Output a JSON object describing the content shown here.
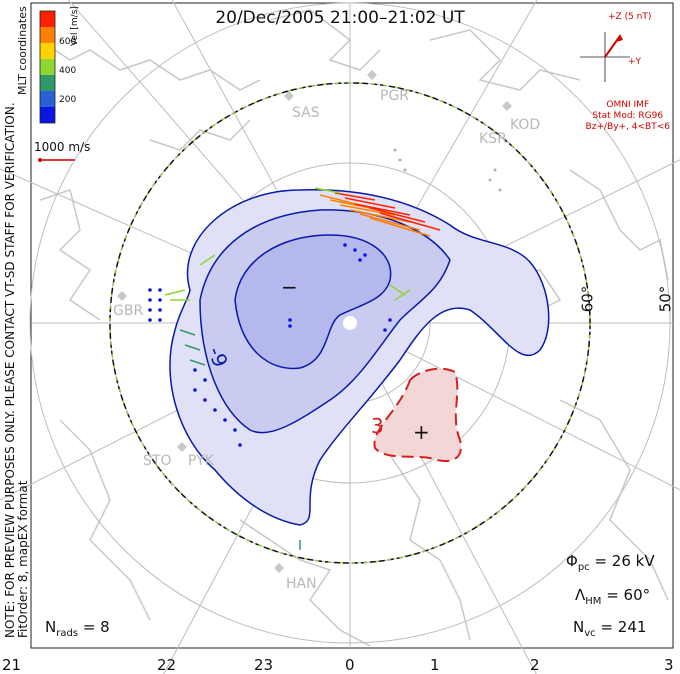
{
  "title": "20/Dec/2005 21:00–21:02 UT",
  "side_note": {
    "line1": "NOTE: FOR PREVIEW PURPOSES ONLY. PLEASE CONTACT VT-SD STAFF FOR VERIFICATION.",
    "line2": "FitOrder: 8, mapEX format",
    "coords": "MLT coordinates"
  },
  "colorbar": {
    "label": "Vel [m/s]",
    "ticks": [
      "600",
      "400",
      "200"
    ],
    "colors": [
      "#ff2000",
      "#ff8000",
      "#ffd200",
      "#8ed630",
      "#2e9a6a",
      "#2a5fd6",
      "#0b16e0"
    ]
  },
  "reference_vector": {
    "label": "1000 m/s",
    "color": "#d40000"
  },
  "imf": {
    "z_label": "+Z (5 nT)",
    "y_label": "+Y",
    "title": "OMNI IMF",
    "stat_mod": "Stat Mod: RG96",
    "condition": "Bz+/By+, 4<BT<6",
    "color": "#d40000"
  },
  "stats": {
    "phi_pc_symbol": "Φ",
    "phi_pc_sub": "pc",
    "phi_pc_value": "= 26 kV",
    "lambda_symbol": "Λ",
    "lambda_sub": "HM",
    "lambda_value": "= 60°",
    "nvc_symbol": "N",
    "nvc_sub": "vc",
    "nvc_value": "= 241",
    "nrads_symbol": "N",
    "nrads_sub": "rads",
    "nrads_value": "= 8"
  },
  "mlt_ticks": [
    "21",
    "22",
    "23",
    "0",
    "1",
    "2",
    "3"
  ],
  "latitude_labels": {
    "lat60": "60°",
    "lat50": "50°"
  },
  "stations": [
    "PGR",
    "SAS",
    "KSR",
    "KOD",
    "STO",
    "PYK",
    "HAN",
    "GBR"
  ],
  "contours": {
    "negative_label": "-9",
    "positive_label": "3",
    "neg_color": "#0a1aa8",
    "pos_color": "#d42020",
    "neg_fill": "#c9cbf0",
    "pos_fill": "#f3d6d6"
  },
  "markers": {
    "minus": "−",
    "plus": "+"
  }
}
